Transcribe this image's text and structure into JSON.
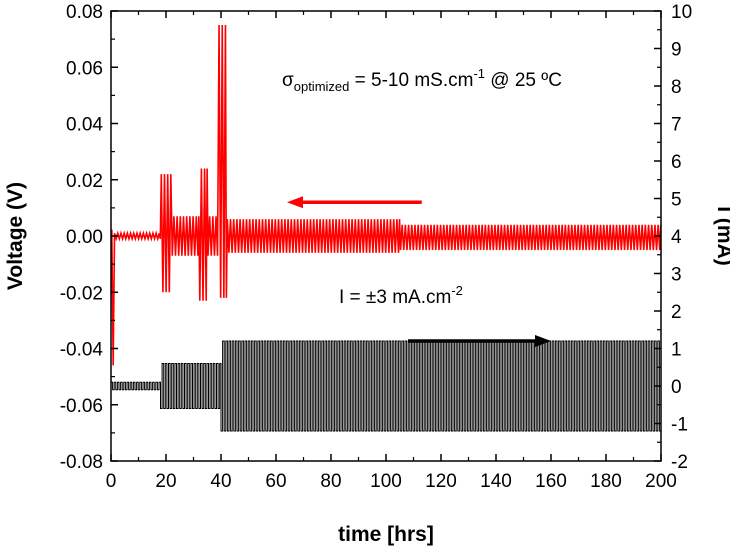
{
  "chart_data": {
    "type": "line",
    "xlabel": "time [hrs]",
    "ylabel_left": "Voltage (V)",
    "ylabel_right": "I (mA)",
    "xlim": [
      0,
      200
    ],
    "ylim_left": [
      -0.08,
      0.08
    ],
    "ylim_right": [
      -2,
      10
    ],
    "x_ticks": [
      0,
      20,
      40,
      60,
      80,
      100,
      120,
      140,
      160,
      180,
      200
    ],
    "y_ticks_left": [
      "-0.08",
      "-0.06",
      "-0.04",
      "-0.02",
      "0.00",
      "0.02",
      "0.04",
      "0.06",
      "0.08"
    ],
    "y_ticks_right": [
      "-2",
      "-1",
      "0",
      "1",
      "2",
      "3",
      "4",
      "5",
      "6",
      "7",
      "8",
      "9",
      "10"
    ],
    "grid": false,
    "series": [
      {
        "axis": "left",
        "color": "#ff0000",
        "segments": [
          {
            "x_start": 0,
            "x_end": 1,
            "low": -0.046,
            "high": 0.002
          },
          {
            "x_start": 1,
            "x_end": 18,
            "low": -0.001,
            "high": 0.001
          },
          {
            "x_start": 18,
            "x_end": 22,
            "low": -0.02,
            "high": 0.022
          },
          {
            "x_start": 22,
            "x_end": 32,
            "low": -0.007,
            "high": 0.007
          },
          {
            "x_start": 32,
            "x_end": 35,
            "low": -0.023,
            "high": 0.024
          },
          {
            "x_start": 35,
            "x_end": 39,
            "low": -0.007,
            "high": 0.007
          },
          {
            "x_start": 39,
            "x_end": 42,
            "low": -0.022,
            "high": 0.075
          },
          {
            "x_start": 42,
            "x_end": 105,
            "low": -0.006,
            "high": 0.006
          },
          {
            "x_start": 105,
            "x_end": 200,
            "low": -0.005,
            "high": 0.004
          }
        ]
      },
      {
        "axis": "right",
        "color": "#000000",
        "segments": [
          {
            "x_start": 0,
            "x_end": 18,
            "low": -0.1,
            "high": 0.1
          },
          {
            "x_start": 18,
            "x_end": 40,
            "low": -0.6,
            "high": 0.6
          },
          {
            "x_start": 40,
            "x_end": 200,
            "low": -1.2,
            "high": 1.2
          }
        ]
      }
    ],
    "annotations": {
      "sigma_symbol": "σ",
      "sigma_subscript": "optimized",
      "sigma_value": " = 5-10 mS.cm",
      "sigma_exponent": "-1",
      "sigma_tail": " @ 25 ºC",
      "current_main": "I = ±3 mA.cm",
      "current_exponent": "-2"
    },
    "arrows": [
      {
        "color": "#ff0000",
        "direction": "left",
        "from": [
          113,
          0.012
        ],
        "to": [
          64,
          0.012
        ]
      },
      {
        "color": "#000000",
        "direction": "right",
        "from": [
          108,
          1.2
        ],
        "to": [
          160,
          1.2
        ]
      }
    ]
  }
}
